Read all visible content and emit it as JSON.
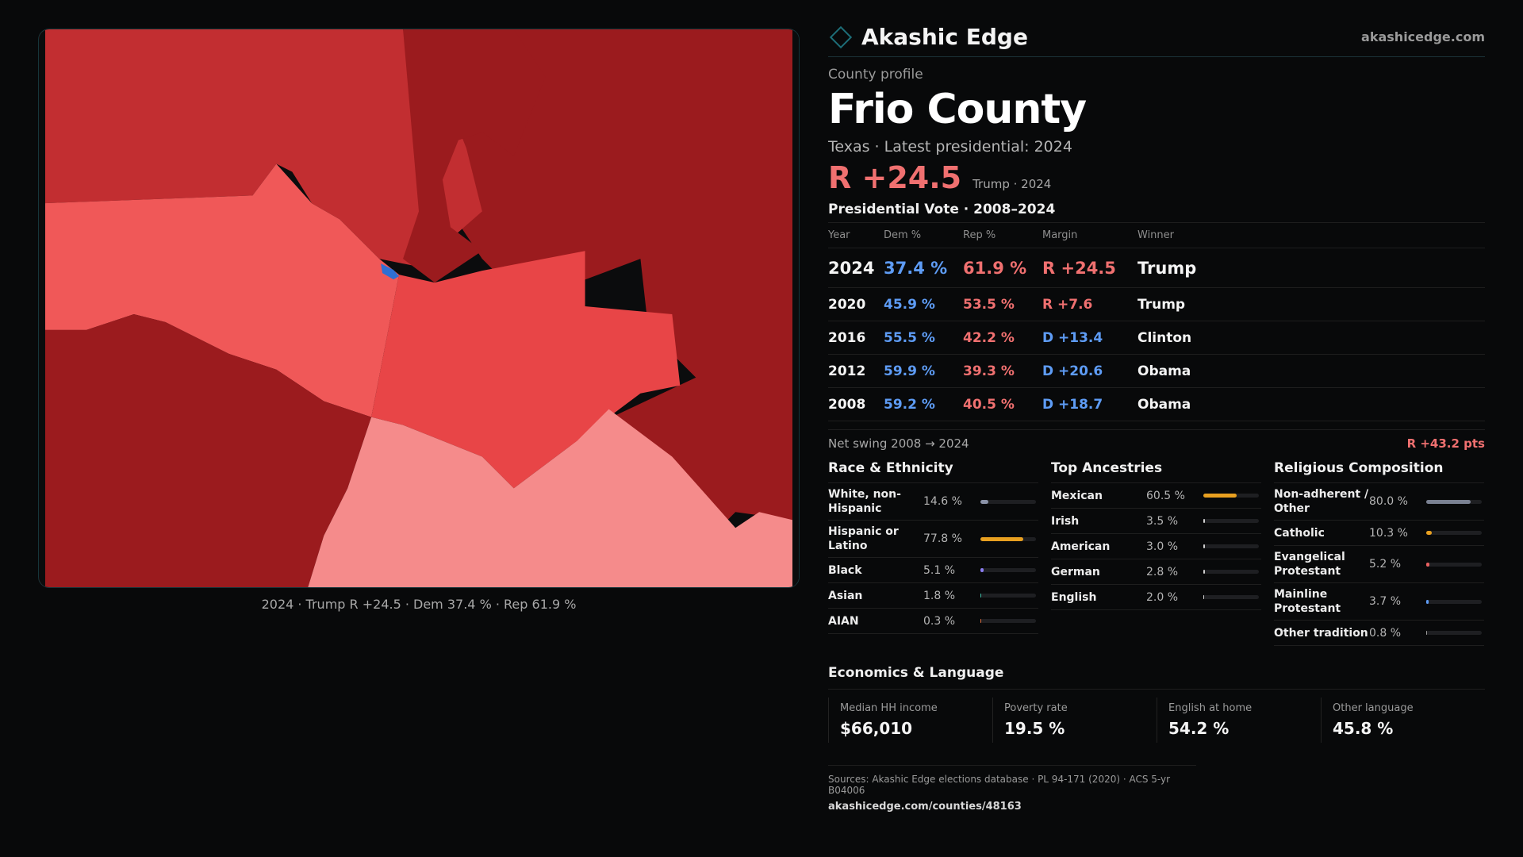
{
  "map": {
    "caption": "2024 · Trump R +24.5 · Dem 37.4 % · Rep 61.9 %",
    "colors": {
      "dark_red": "#9b1b1e",
      "mid_red": "#c22e31",
      "bright_red": "#f05858",
      "red": "#e84547",
      "pink": "#f58b8b",
      "blue": "#2f6fd4"
    }
  },
  "header": {
    "brand": "Akashic Edge",
    "url": "akashicedge.com"
  },
  "profile": {
    "kicker": "County profile",
    "title": "Frio County",
    "subtitle": "Texas · Latest presidential: 2024",
    "margin": "R +24.5",
    "margin_note": "Trump · 2024"
  },
  "votes": {
    "title": "Presidential Vote · 2008–2024",
    "headers": {
      "year": "Year",
      "dem": "Dem %",
      "rep": "Rep %",
      "margin": "Margin",
      "winner": "Winner"
    },
    "rows": [
      {
        "year": "2024",
        "dem": "37.4 %",
        "rep": "61.9 %",
        "margin": "R +24.5",
        "winner": "Trump",
        "party": "R"
      },
      {
        "year": "2020",
        "dem": "45.9 %",
        "rep": "53.5 %",
        "margin": "R +7.6",
        "winner": "Trump",
        "party": "R"
      },
      {
        "year": "2016",
        "dem": "55.5 %",
        "rep": "42.2 %",
        "margin": "D +13.4",
        "winner": "Clinton",
        "party": "D"
      },
      {
        "year": "2012",
        "dem": "59.9 %",
        "rep": "39.3 %",
        "margin": "D +20.6",
        "winner": "Obama",
        "party": "D"
      },
      {
        "year": "2008",
        "dem": "59.2 %",
        "rep": "40.5 %",
        "margin": "D +18.7",
        "winner": "Obama",
        "party": "D"
      }
    ]
  },
  "swing": {
    "label": "Net swing 2008 → 2024",
    "value": "R +43.2 pts"
  },
  "demographics": {
    "race": {
      "title": "Race & Ethnicity",
      "rows": [
        {
          "label": "White, non-Hispanic",
          "value": "14.6 %",
          "pct": 0.146,
          "color": "#8b93a8"
        },
        {
          "label": "Hispanic or Latino",
          "value": "77.8 %",
          "pct": 0.778,
          "color": "#e8a020"
        },
        {
          "label": "Black",
          "value": "5.1 %",
          "pct": 0.051,
          "color": "#8a7df0"
        },
        {
          "label": "Asian",
          "value": "1.8 %",
          "pct": 0.018,
          "color": "#3fc0a8"
        },
        {
          "label": "AIAN",
          "value": "0.3 %",
          "pct": 0.003,
          "color": "#e07040"
        }
      ]
    },
    "ancestry": {
      "title": "Top Ancestries",
      "rows": [
        {
          "label": "Mexican",
          "value": "60.5 %",
          "pct": 0.605,
          "color": "#e8a020"
        },
        {
          "label": "Irish",
          "value": "3.5 %",
          "pct": 0.035,
          "color": "#cfcfcf"
        },
        {
          "label": "American",
          "value": "3.0 %",
          "pct": 0.03,
          "color": "#cfcfcf"
        },
        {
          "label": "German",
          "value": "2.8 %",
          "pct": 0.028,
          "color": "#cfcfcf"
        },
        {
          "label": "English",
          "value": "2.0 %",
          "pct": 0.02,
          "color": "#cfcfcf"
        }
      ]
    },
    "religion": {
      "title": "Religious Composition",
      "rows": [
        {
          "label": "Non-adherent / Other",
          "value": "80.0 %",
          "pct": 0.8,
          "color": "#7a8192"
        },
        {
          "label": "Catholic",
          "value": "10.3 %",
          "pct": 0.103,
          "color": "#e8a020"
        },
        {
          "label": "Evangelical Protestant",
          "value": "5.2 %",
          "pct": 0.052,
          "color": "#e86060"
        },
        {
          "label": "Mainline Protestant",
          "value": "3.7 %",
          "pct": 0.037,
          "color": "#5e9cf5"
        },
        {
          "label": "Other tradition",
          "value": "0.8 %",
          "pct": 0.008,
          "color": "#9a9a9a"
        }
      ]
    }
  },
  "economics": {
    "title": "Economics & Language",
    "cards": [
      {
        "label": "Median HH income",
        "value": "$66,010"
      },
      {
        "label": "Poverty rate",
        "value": "19.5 %"
      },
      {
        "label": "English at home",
        "value": "54.2 %"
      },
      {
        "label": "Other language",
        "value": "45.8 %"
      }
    ]
  },
  "footer": {
    "sources": "Sources: Akashic Edge elections database · PL 94-171 (2020) · ACS 5-yr B04006",
    "url": "akashicedge.com/counties/48163"
  }
}
